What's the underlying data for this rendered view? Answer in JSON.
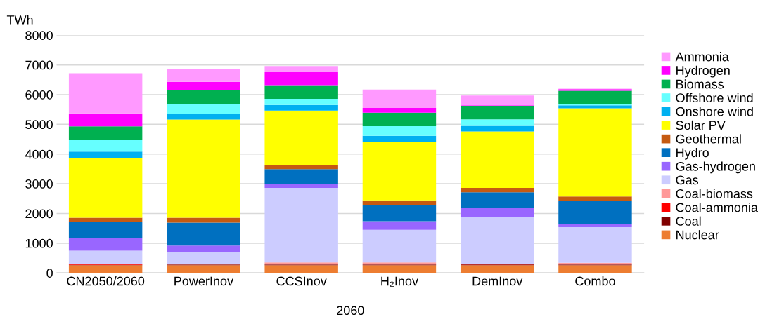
{
  "chart_data": {
    "type": "bar",
    "stacked": true,
    "ylabel": "TWh",
    "xlabel": "2060",
    "categories": [
      "CN2050/2060",
      "PowerInov",
      "CCSInov",
      "H₂Inov",
      "DemInov",
      "Combo"
    ],
    "ylim": [
      0,
      8000
    ],
    "yticks": [
      0,
      1000,
      2000,
      3000,
      4000,
      5000,
      6000,
      7000,
      8000
    ],
    "grid": "y",
    "legend": "right",
    "series": [
      {
        "name": "Nuclear",
        "color": "#ed7d31",
        "values": [
          260,
          260,
          260,
          260,
          260,
          260
        ]
      },
      {
        "name": "Coal",
        "color": "#800000",
        "values": [
          10,
          20,
          20,
          20,
          20,
          20
        ]
      },
      {
        "name": "Coal-ammonia",
        "color": "#ff0000",
        "values": [
          20,
          0,
          0,
          0,
          10,
          0
        ]
      },
      {
        "name": "Coal-biomass",
        "color": "#ff9999",
        "values": [
          0,
          10,
          70,
          70,
          0,
          60
        ]
      },
      {
        "name": "Gas",
        "color": "#ccccff",
        "values": [
          460,
          420,
          2510,
          1100,
          1600,
          1200
        ]
      },
      {
        "name": "Gas-hydrogen",
        "color": "#9966ff",
        "values": [
          430,
          210,
          120,
          290,
          290,
          100
        ]
      },
      {
        "name": "Hydro",
        "color": "#0070c0",
        "values": [
          540,
          770,
          510,
          550,
          530,
          770
        ]
      },
      {
        "name": "Geothermal",
        "color": "#c55a11",
        "values": [
          140,
          170,
          140,
          150,
          150,
          160
        ]
      },
      {
        "name": "Solar PV",
        "color": "#ffff00",
        "values": [
          1990,
          3300,
          1830,
          1970,
          1900,
          2970
        ]
      },
      {
        "name": "Onshore wind",
        "color": "#00b0f0",
        "values": [
          230,
          180,
          190,
          200,
          190,
          100
        ]
      },
      {
        "name": "Offshore wind",
        "color": "#66ffff",
        "values": [
          400,
          330,
          210,
          330,
          220,
          30
        ]
      },
      {
        "name": "Biomass",
        "color": "#00b050",
        "values": [
          450,
          470,
          460,
          450,
          450,
          460
        ]
      },
      {
        "name": "Hydrogen",
        "color": "#ff00ff",
        "values": [
          440,
          290,
          440,
          160,
          20,
          50
        ]
      },
      {
        "name": "Ammonia",
        "color": "#ff99ff",
        "values": [
          1350,
          430,
          200,
          620,
          330,
          20
        ]
      }
    ]
  }
}
